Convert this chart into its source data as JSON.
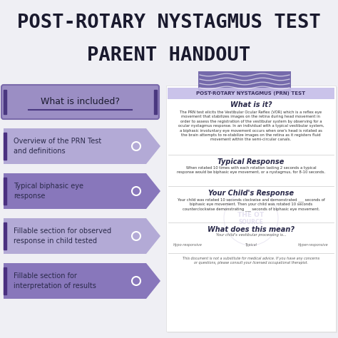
{
  "bg_color": "#efeff4",
  "title_line1": "POST-ROTARY NYSTAGMUS TEST",
  "title_line2": "PARENT HANDOUT",
  "title_color": "#1a1a2e",
  "title_fontsize": 19.5,
  "left_box_color": "#9b8ec4",
  "left_box_border": "#7a6aaa",
  "left_box_text": "What is included?",
  "left_box_text_color": "#1a1a2e",
  "arrows": [
    {
      "text": "Overview of the PRN Test\nand definitions",
      "color": "#b3aad6",
      "text_color": "#2a2a4a"
    },
    {
      "text": "Typical biphasic eye\nresponse",
      "color": "#8877bb",
      "text_color": "#2a2a4a"
    },
    {
      "text": "Fillable section for observed\nresponse in child tested",
      "color": "#b3aad6",
      "text_color": "#2a2a4a"
    },
    {
      "text": "Fillable section for\ninterpretation of results",
      "color": "#8877bb",
      "text_color": "#2a2a4a"
    }
  ],
  "right_panel_bg": "#ffffff",
  "tape_color": "#6b5fa5",
  "tape_label": "POST-ROTARY NYSTAGMUS (PRN) TEST",
  "tape_label_color": "#3a3060",
  "tape_bg": "#c5bde8",
  "doc_title": "What is it?",
  "doc_body1": "The PRN test elicits the Vestibular Ocular Reflex (VOR) which is a reflex eye\nmovement that stabilizes images on the retina during head movement in\norder to assess the registration of the vestibular system by observing for a\nocular nystagmus response. In an individual with a typical vestibular system,\na biphasic involuntary eye movement occurs when one's head is rotated as\nthe brain attempts to re-stabilize images on the retina as it registers fluid\nmovement within the semi-circular canals.",
  "section1_title": "Typical Response",
  "section1_body": "When rotated 10 times with each rotation lasting 2 seconds a typical\nresponse would be biphasic eye movement, or a nystagmus, for 8-10 seconds.",
  "section2_title": "Your Child's Response",
  "section2_body": "Your child was rotated 10 seconds clockwise and demonstrated ___ seconds of\nbiphasic eye movement. Then your child was rotated 10 seconds\ncounterclockwise demonstrating ___ seconds of biphasic eye movement.",
  "section3_title": "What does this mean?",
  "section3_body": "Your child's vestibular processing is...",
  "section3_labels": [
    "Hypo-responsive",
    "Typical",
    "Hyper-responsive"
  ],
  "footer_text": "This document is not a substitute for medical advice. If you have any concerns\nor questions, please consult your licensed occupational therapist.",
  "stamp_color": "#8877bb"
}
